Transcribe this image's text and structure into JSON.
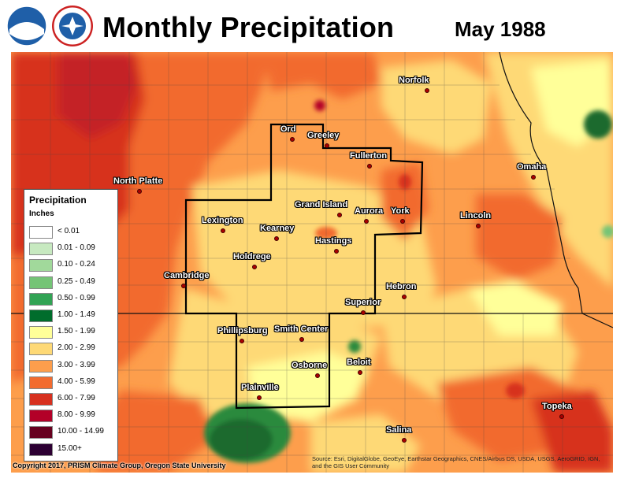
{
  "title": "Monthly Precipitation",
  "subtitle": "May 1988",
  "logos": [
    {
      "name": "noaa",
      "text": "NOAA"
    },
    {
      "name": "nws",
      "text": "NATIONAL WEATHER SERVICE"
    }
  ],
  "legend": {
    "title": "Precipitation",
    "unit": "Inches",
    "items": [
      {
        "label": "< 0.01",
        "color": "#ffffff"
      },
      {
        "label": "0.01 - 0.09",
        "color": "#c7e9c0"
      },
      {
        "label": "0.10 - 0.24",
        "color": "#a1d99b"
      },
      {
        "label": "0.25 - 0.49",
        "color": "#74c476"
      },
      {
        "label": "0.50 - 0.99",
        "color": "#31a354"
      },
      {
        "label": "1.00 - 1.49",
        "color": "#006d2c"
      },
      {
        "label": "1.50 - 1.99",
        "color": "#ffff99"
      },
      {
        "label": "2.00 - 2.99",
        "color": "#fed976"
      },
      {
        "label": "3.00 - 3.99",
        "color": "#fd9e4c"
      },
      {
        "label": "4.00 - 5.99",
        "color": "#f26b2f"
      },
      {
        "label": "6.00 - 7.99",
        "color": "#d7301f"
      },
      {
        "label": "8.00 - 9.99",
        "color": "#b30028"
      },
      {
        "label": "10.00 - 14.99",
        "color": "#67001f"
      },
      {
        "label": "15.00+",
        "color": "#2d0033"
      }
    ]
  },
  "cities": [
    {
      "name": "Norfolk"
    },
    {
      "name": "Ord"
    },
    {
      "name": "Greeley"
    },
    {
      "name": "Fullerton"
    },
    {
      "name": "North Platte"
    },
    {
      "name": "Omaha"
    },
    {
      "name": "Grand Island"
    },
    {
      "name": "Aurora"
    },
    {
      "name": "York"
    },
    {
      "name": "Lincoln"
    },
    {
      "name": "Lexington"
    },
    {
      "name": "Kearney"
    },
    {
      "name": "Hastings"
    },
    {
      "name": "Holdrege"
    },
    {
      "name": "Cambridge"
    },
    {
      "name": "Hebron"
    },
    {
      "name": "Superior"
    },
    {
      "name": "Phillipsburg"
    },
    {
      "name": "Smith Center"
    },
    {
      "name": "Beloit"
    },
    {
      "name": "Osborne"
    },
    {
      "name": "Plainville"
    },
    {
      "name": "Topeka"
    },
    {
      "name": "Salina"
    }
  ],
  "footer": {
    "copyright": "Copyright 2017, PRISM Climate Group, Oregon State University",
    "sources": "Source: Esri, DigitalGlobe, GeoEye, Earthstar Geographics, CNES/Airbus DS, USDA, USGS, AeroGRID, IGN, and the GIS User Community"
  }
}
